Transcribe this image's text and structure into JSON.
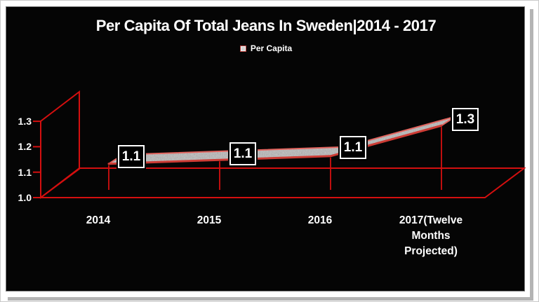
{
  "window": {
    "background_color": "#ffffff",
    "panel_background_color": "#050505"
  },
  "style": {
    "accent_red": "#d40f0f",
    "ribbon_fill_grey": "#b7b7b7",
    "ribbon_edge_pink": "#e2645e",
    "ribbon_front_red": "#cd3c35",
    "text_color": "#ffffff"
  },
  "chart": {
    "title": "Per Capita Of Total Jeans In Sweden|2014 - 2017",
    "legend": {
      "label": "Per Capita"
    }
  },
  "chart_data": {
    "type": "line",
    "subtype": "3d-ribbon",
    "title": "Per Capita Of Total Jeans In Sweden|2014 - 2017",
    "legend_entries": [
      "Per Capita"
    ],
    "legend_position": "top-center",
    "categories": [
      "2014",
      "2015",
      "2016",
      "2017(Twelve Months Projected)"
    ],
    "series": [
      {
        "name": "Per Capita",
        "values": [
          1.1,
          1.1,
          1.1,
          1.3
        ]
      }
    ],
    "point_labels": [
      "1.1",
      "1.1",
      "1.1",
      "1.3"
    ],
    "plotted_values": [
      1.1,
      1.115,
      1.13,
      1.25
    ],
    "yticks": [
      "1.0",
      "1.1",
      "1.2",
      "1.3"
    ],
    "ylim": [
      1.0,
      1.3
    ],
    "x_tick_labels": [
      "2014",
      "2015",
      "2016",
      "2017(Twelve\nMonths\nProjected)"
    ],
    "grid": "off",
    "background": "black",
    "axis_color": "red"
  }
}
